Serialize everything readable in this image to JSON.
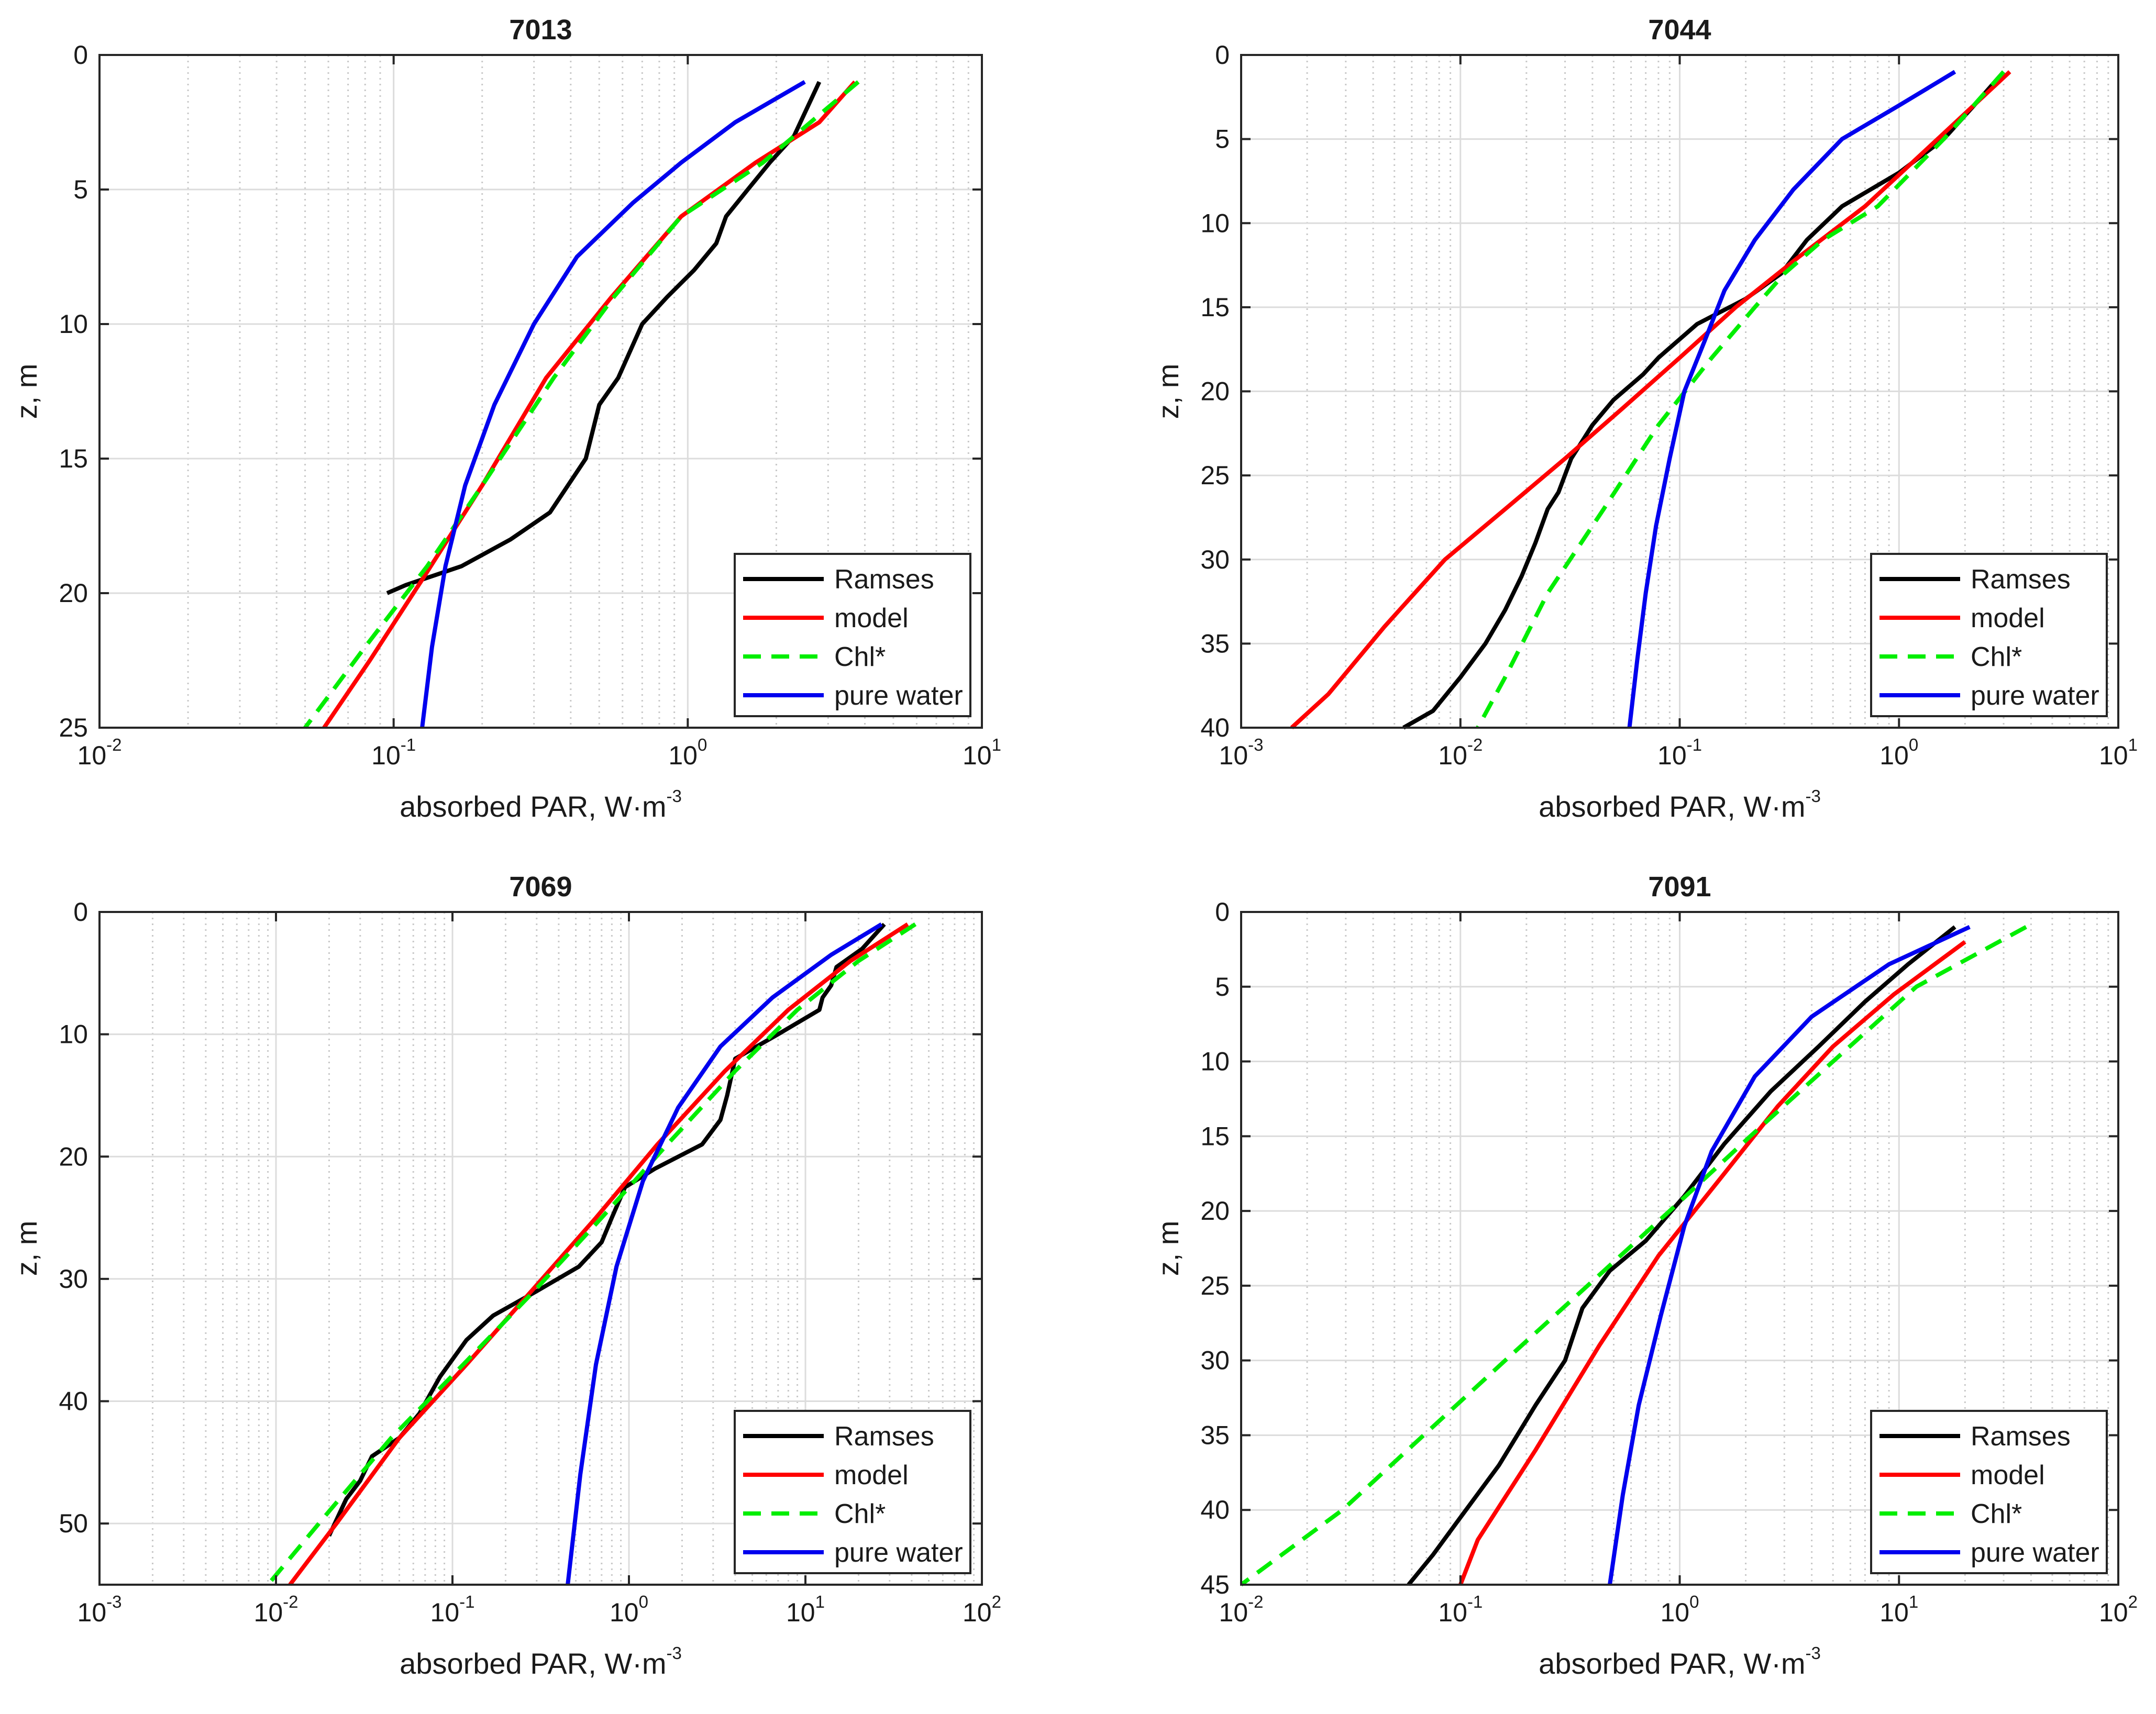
{
  "figure": {
    "x_label_main": "absorbed PAR, W·m",
    "x_label_exp": "-3",
    "y_label": "z, m"
  },
  "chart_data": [
    {
      "type": "line",
      "title": "7013",
      "xscale": "log",
      "xlim_exp": [
        -2,
        1
      ],
      "ylim": [
        0,
        25
      ],
      "y_ticks": [
        0,
        5,
        10,
        15,
        20,
        25
      ],
      "x_tick_exps": [
        -2,
        -1,
        0,
        1
      ],
      "x_tick_labels": [
        "10-2",
        "10-1",
        "100",
        "101"
      ],
      "grid": true,
      "legend_position": "bottom-right",
      "series": [
        {
          "name": "Ramses",
          "color": "#000000",
          "dash": "solid",
          "x": [
            2.8,
            2.3,
            1.9,
            1.6,
            1.35,
            1.25,
            1.05,
            0.85,
            0.7,
            0.58,
            0.5,
            0.45,
            0.34,
            0.25,
            0.17,
            0.11,
            0.095
          ],
          "z": [
            1,
            3,
            4,
            5,
            6,
            7,
            8,
            9,
            10,
            12,
            13,
            15,
            17,
            18,
            19,
            19.7,
            20
          ]
        },
        {
          "name": "model",
          "color": "#ff0000",
          "dash": "solid",
          "x": [
            3.7,
            2.8,
            1.7,
            0.95,
            0.55,
            0.33,
            0.2,
            0.125,
            0.083,
            0.058
          ],
          "z": [
            1,
            2.5,
            4,
            6,
            9,
            12,
            16,
            19.5,
            22.5,
            25
          ]
        },
        {
          "name": "Chl*",
          "color": "#00ee00",
          "dash": "dash",
          "x": [
            3.8,
            1.8,
            0.95,
            0.56,
            0.35,
            0.2,
            0.13,
            0.08,
            0.05
          ],
          "z": [
            1,
            4,
            6,
            9,
            12,
            16,
            19,
            22,
            25
          ]
        },
        {
          "name": "pure water",
          "color": "#0000ee",
          "dash": "solid",
          "x": [
            2.5,
            1.45,
            0.95,
            0.65,
            0.42,
            0.3,
            0.22,
            0.175,
            0.15,
            0.135,
            0.125
          ],
          "z": [
            1,
            2.5,
            4,
            5.5,
            7.5,
            10,
            13,
            16,
            19,
            22,
            25
          ]
        }
      ]
    },
    {
      "type": "line",
      "title": "7044",
      "xscale": "log",
      "xlim_exp": [
        -3,
        1
      ],
      "ylim": [
        0,
        40
      ],
      "y_ticks": [
        0,
        5,
        10,
        15,
        20,
        25,
        30,
        35,
        40
      ],
      "x_tick_exps": [
        -3,
        -2,
        -1,
        0,
        1
      ],
      "x_tick_labels": [
        "10-3",
        "10-2",
        "10-1",
        "100",
        "101"
      ],
      "grid": true,
      "legend_position": "bottom-right",
      "series": [
        {
          "name": "Ramses",
          "color": "#000000",
          "dash": "solid",
          "x": [
            3.0,
            2.2,
            1.6,
            1.0,
            0.55,
            0.38,
            0.29,
            0.2,
            0.12,
            0.08,
            0.068,
            0.05,
            0.04,
            0.032,
            0.028,
            0.025,
            0.022,
            0.019,
            0.016,
            0.013,
            0.01,
            0.0075,
            0.0055
          ],
          "z": [
            1,
            3,
            5,
            7,
            9,
            11,
            13,
            14.5,
            16,
            18,
            19,
            20.5,
            22,
            24,
            26,
            27,
            29,
            31,
            33,
            35,
            37,
            39,
            40
          ]
        },
        {
          "name": "model",
          "color": "#ff0000",
          "dash": "solid",
          "x": [
            3.2,
            1.5,
            0.7,
            0.35,
            0.18,
            0.1,
            0.055,
            0.03,
            0.016,
            0.0085,
            0.0045,
            0.0025,
            0.0017
          ],
          "z": [
            1,
            5,
            9,
            12,
            15,
            18,
            21,
            24,
            27,
            30,
            34,
            38,
            40
          ]
        },
        {
          "name": "Chl*",
          "color": "#00ee00",
          "dash": "dash",
          "x": [
            3.0,
            1.6,
            0.8,
            0.45,
            0.3,
            0.22,
            0.14,
            0.08,
            0.045,
            0.025,
            0.016,
            0.012
          ],
          "z": [
            1,
            5,
            9,
            11,
            13,
            15,
            18,
            22,
            27,
            32,
            37,
            40
          ]
        },
        {
          "name": "pure water",
          "color": "#0000ee",
          "dash": "solid",
          "x": [
            1.8,
            1.0,
            0.55,
            0.33,
            0.22,
            0.16,
            0.13,
            0.105,
            0.09,
            0.078,
            0.07,
            0.064,
            0.059
          ],
          "z": [
            1,
            3,
            5,
            8,
            11,
            14,
            17,
            20,
            24,
            28,
            32,
            36,
            40
          ]
        }
      ]
    },
    {
      "type": "line",
      "title": "7069",
      "xscale": "log",
      "xlim_exp": [
        -3,
        2
      ],
      "ylim": [
        0,
        55
      ],
      "y_ticks": [
        0,
        10,
        20,
        30,
        40,
        50
      ],
      "x_tick_exps": [
        -3,
        -2,
        -1,
        0,
        1,
        2
      ],
      "x_tick_labels": [
        "10-3",
        "10-2",
        "10-1",
        "100",
        "101",
        "102"
      ],
      "grid": true,
      "legend_position": "bottom-right",
      "series": [
        {
          "name": "Ramses",
          "color": "#000000",
          "dash": "solid",
          "x": [
            28,
            21,
            15,
            14,
            12.5,
            12,
            7,
            4,
            3.6,
            3.3,
            2.6,
            1.4,
            0.95,
            0.8,
            0.7,
            0.52,
            0.3,
            0.17,
            0.12,
            0.085,
            0.065,
            0.05,
            0.035,
            0.03,
            0.025,
            0.02
          ],
          "z": [
            1,
            3,
            4.5,
            6,
            7,
            8,
            10,
            12,
            15,
            17,
            19,
            21,
            22.5,
            25,
            27,
            29,
            31,
            33,
            35,
            38,
            41,
            43,
            44.5,
            46.5,
            48,
            51
          ]
        },
        {
          "name": "model",
          "color": "#ff0000",
          "dash": "solid",
          "x": [
            38,
            18,
            8,
            3.5,
            1.45,
            0.65,
            0.28,
            0.12,
            0.05,
            0.022,
            0.012
          ],
          "z": [
            1,
            4,
            8,
            13,
            19,
            25,
            31,
            37,
            43,
            50,
            55
          ]
        },
        {
          "name": "Chl*",
          "color": "#00ee00",
          "dash": "dash",
          "x": [
            42,
            20,
            9,
            4,
            1.65,
            0.7,
            0.29,
            0.115,
            0.045,
            0.02,
            0.009
          ],
          "z": [
            1,
            4,
            8,
            13,
            19,
            25,
            31,
            37,
            43,
            49,
            55
          ]
        },
        {
          "name": "pure water",
          "color": "#0000ee",
          "dash": "solid",
          "x": [
            27,
            14,
            6.5,
            3.3,
            1.9,
            1.2,
            0.85,
            0.65,
            0.53,
            0.45
          ],
          "z": [
            1,
            3.5,
            7,
            11,
            16,
            22,
            29,
            37,
            46,
            55
          ]
        }
      ]
    },
    {
      "type": "line",
      "title": "7091",
      "xscale": "log",
      "xlim_exp": [
        -2,
        2
      ],
      "ylim": [
        0,
        45
      ],
      "y_ticks": [
        0,
        5,
        10,
        15,
        20,
        25,
        30,
        35,
        40,
        45
      ],
      "x_tick_exps": [
        -2,
        -1,
        0,
        1,
        2
      ],
      "x_tick_labels": [
        "10-2",
        "10-1",
        "100",
        "101",
        "102"
      ],
      "grid": true,
      "legend_position": "bottom-right",
      "series": [
        {
          "name": "Ramses",
          "color": "#000000",
          "dash": "solid",
          "x": [
            18,
            11,
            7,
            4.3,
            2.6,
            1.6,
            1.05,
            0.7,
            0.48,
            0.36,
            0.3,
            0.22,
            0.15,
            0.1,
            0.075,
            0.058
          ],
          "z": [
            1,
            3.5,
            6,
            9,
            12,
            15.5,
            19,
            22,
            24,
            26.5,
            30,
            33,
            37,
            40.5,
            43,
            45
          ]
        },
        {
          "name": "model",
          "color": "#ff0000",
          "dash": "solid",
          "x": [
            20,
            9.5,
            5,
            2.8,
            1.5,
            0.8,
            0.43,
            0.22,
            0.12,
            0.1
          ],
          "z": [
            2,
            5.5,
            9,
            13,
            18,
            23,
            29,
            36,
            42,
            45
          ]
        },
        {
          "name": "Chl*",
          "color": "#00ee00",
          "dash": "dash",
          "x": [
            38,
            12,
            5,
            2.1,
            0.9,
            0.38,
            0.16,
            0.068,
            0.029,
            0.01
          ],
          "z": [
            1,
            5,
            10,
            15,
            20,
            25,
            30,
            35,
            40,
            45
          ]
        },
        {
          "name": "pure water",
          "color": "#0000ee",
          "dash": "solid",
          "x": [
            21,
            9,
            4,
            2.2,
            1.4,
            1.05,
            0.82,
            0.65,
            0.55,
            0.48
          ],
          "z": [
            1,
            3.5,
            7,
            11,
            16,
            21,
            27,
            33,
            39,
            45
          ]
        }
      ]
    }
  ]
}
